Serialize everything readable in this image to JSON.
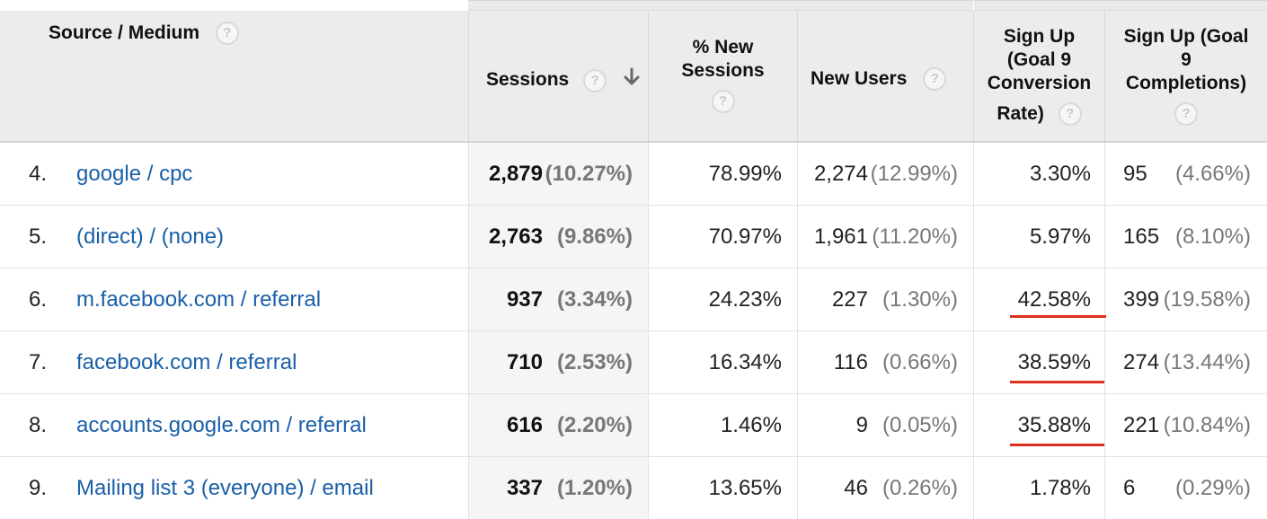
{
  "header": {
    "source_medium": "Source / Medium",
    "sessions": "Sessions",
    "new_sessions": [
      "% New",
      "Sessions"
    ],
    "new_users": "New Users",
    "conv_rate": [
      "Sign Up",
      "(Goal 9",
      "Conversion",
      "Rate)"
    ],
    "completions": [
      "Sign Up (Goal",
      "9",
      "Completions)"
    ],
    "help_glyph": "?"
  },
  "rows": [
    {
      "rank": "4.",
      "source": "google / cpc",
      "sessions": "2,879",
      "sessions_pct": "(10.27%)",
      "new_sessions": "78.99%",
      "new_users": "2,274",
      "new_users_pct": "(12.99%)",
      "conv_rate": "3.30%",
      "completions": "95",
      "completions_pct": "(4.66%)"
    },
    {
      "rank": "5.",
      "source": "(direct) / (none)",
      "sessions": "2,763",
      "sessions_pct": "(9.86%)",
      "new_sessions": "70.97%",
      "new_users": "1,961",
      "new_users_pct": "(11.20%)",
      "conv_rate": "5.97%",
      "completions": "165",
      "completions_pct": "(8.10%)"
    },
    {
      "rank": "6.",
      "source": "m.facebook.com / referral",
      "sessions": "937",
      "sessions_pct": "(3.34%)",
      "new_sessions": "24.23%",
      "new_users": "227",
      "new_users_pct": "(1.30%)",
      "conv_rate": "42.58%",
      "completions": "399",
      "completions_pct": "(19.58%)"
    },
    {
      "rank": "7.",
      "source": "facebook.com / referral",
      "sessions": "710",
      "sessions_pct": "(2.53%)",
      "new_sessions": "16.34%",
      "new_users": "116",
      "new_users_pct": "(0.66%)",
      "conv_rate": "38.59%",
      "completions": "274",
      "completions_pct": "(13.44%)"
    },
    {
      "rank": "8.",
      "source": "accounts.google.com / referral",
      "sessions": "616",
      "sessions_pct": "(2.20%)",
      "new_sessions": "1.46%",
      "new_users": "9",
      "new_users_pct": "(0.05%)",
      "conv_rate": "35.88%",
      "completions": "221",
      "completions_pct": "(10.84%)"
    },
    {
      "rank": "9.",
      "source": "Mailing list 3 (everyone) / email",
      "sessions": "337",
      "sessions_pct": "(1.20%)",
      "new_sessions": "13.65%",
      "new_users": "46",
      "new_users_pct": "(0.26%)",
      "conv_rate": "1.78%",
      "completions": "6",
      "completions_pct": "(0.29%)"
    }
  ],
  "colors": {
    "link": "#1a5fa8",
    "highlight_underline": "#e0301e",
    "header_bg": "#ececec"
  },
  "icons": {
    "help": "help-circle-icon",
    "sort": "arrow-down-icon"
  }
}
